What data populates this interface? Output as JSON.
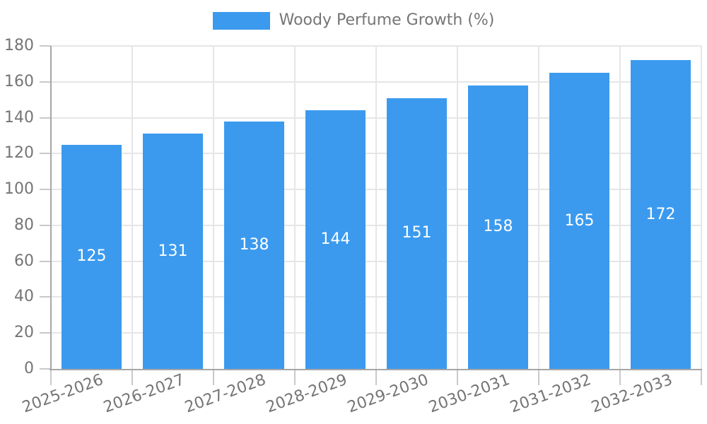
{
  "chart_data": {
    "type": "bar",
    "title": "Woody Perfume Growth (%)",
    "categories": [
      "2025-2026",
      "2026-2027",
      "2027-2028",
      "2028-2029",
      "2029-2030",
      "2030-2031",
      "2031-2032",
      "2032-2033"
    ],
    "values": [
      125,
      131,
      138,
      144,
      151,
      158,
      165,
      172
    ],
    "series_name": "Woody Perfume Growth (%)",
    "xlabel": "",
    "ylabel": "",
    "ylim": [
      0,
      180
    ],
    "ytick_step": 20,
    "ytick_labels": [
      "0",
      "20",
      "40",
      "60",
      "80",
      "100",
      "120",
      "140",
      "160",
      "180"
    ],
    "grid": true,
    "legend_position": "top",
    "value_label_position": "inside-center",
    "colors": {
      "bar": "#3b9aee",
      "gridline": "#e6e6e6",
      "axis_line": "#a6a6a6",
      "tick": "#c9c9c9",
      "axis_text": "#757575",
      "value_text": "#ffffff",
      "background": "#ffffff"
    }
  }
}
